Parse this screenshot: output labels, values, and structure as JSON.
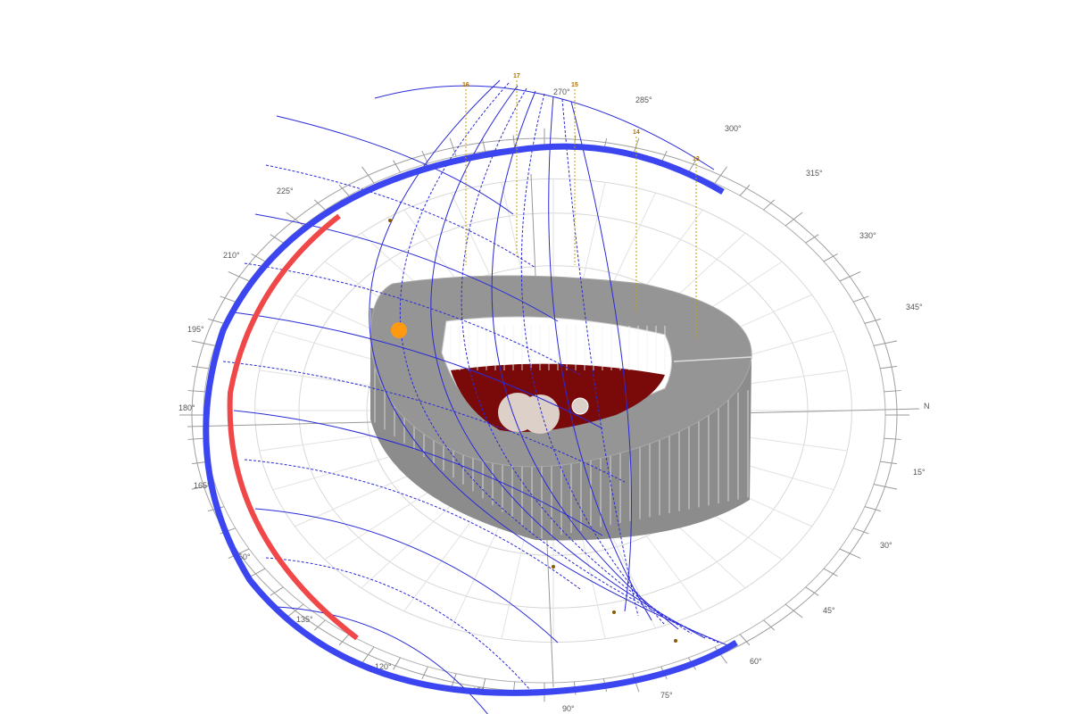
{
  "diagram": {
    "compass_labels": [
      "270°",
      "285°",
      "300°",
      "315°",
      "330°",
      "345°",
      "N",
      "15°",
      "30°",
      "45°",
      "60°",
      "75°",
      "90°",
      "105°",
      "120°",
      "135°",
      "150°",
      "165°",
      "180°",
      "195°",
      "210°",
      "225°"
    ],
    "hour_labels": [
      "16",
      "17",
      "15",
      "14",
      "13"
    ],
    "colors": {
      "sun_path_lines": "#2a2ad8",
      "summer_arc": "#3c46f0",
      "winter_arc": "#f04848",
      "building_top": "#8c8c8c",
      "building_inner_floor": "#7a0a0a",
      "sun": "#ff9a10",
      "hour_marker": "#b07000",
      "compass_ring": "#9a9a9a"
    },
    "icons": {
      "sun": "sun-position-icon"
    }
  }
}
